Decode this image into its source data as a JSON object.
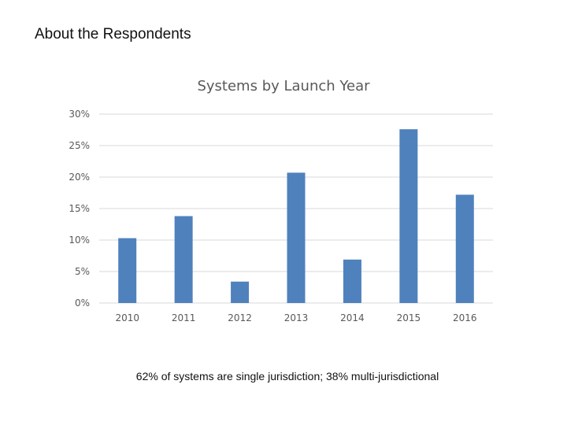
{
  "slide": {
    "title": "About the Respondents",
    "caption": "62% of systems are single jurisdiction; 38% multi-jurisdictional"
  },
  "chart_data": {
    "type": "bar",
    "title": "Systems by Launch Year",
    "categories": [
      "2010",
      "2011",
      "2012",
      "2013",
      "2014",
      "2015",
      "2016"
    ],
    "values": [
      10.3,
      13.8,
      3.4,
      20.7,
      6.9,
      27.6,
      17.2
    ],
    "yticks": [
      "0%",
      "5%",
      "10%",
      "15%",
      "20%",
      "25%",
      "30%"
    ],
    "ylim": [
      0,
      30
    ],
    "grid": true,
    "legend": "none",
    "bar_color": "#4f81bd"
  }
}
